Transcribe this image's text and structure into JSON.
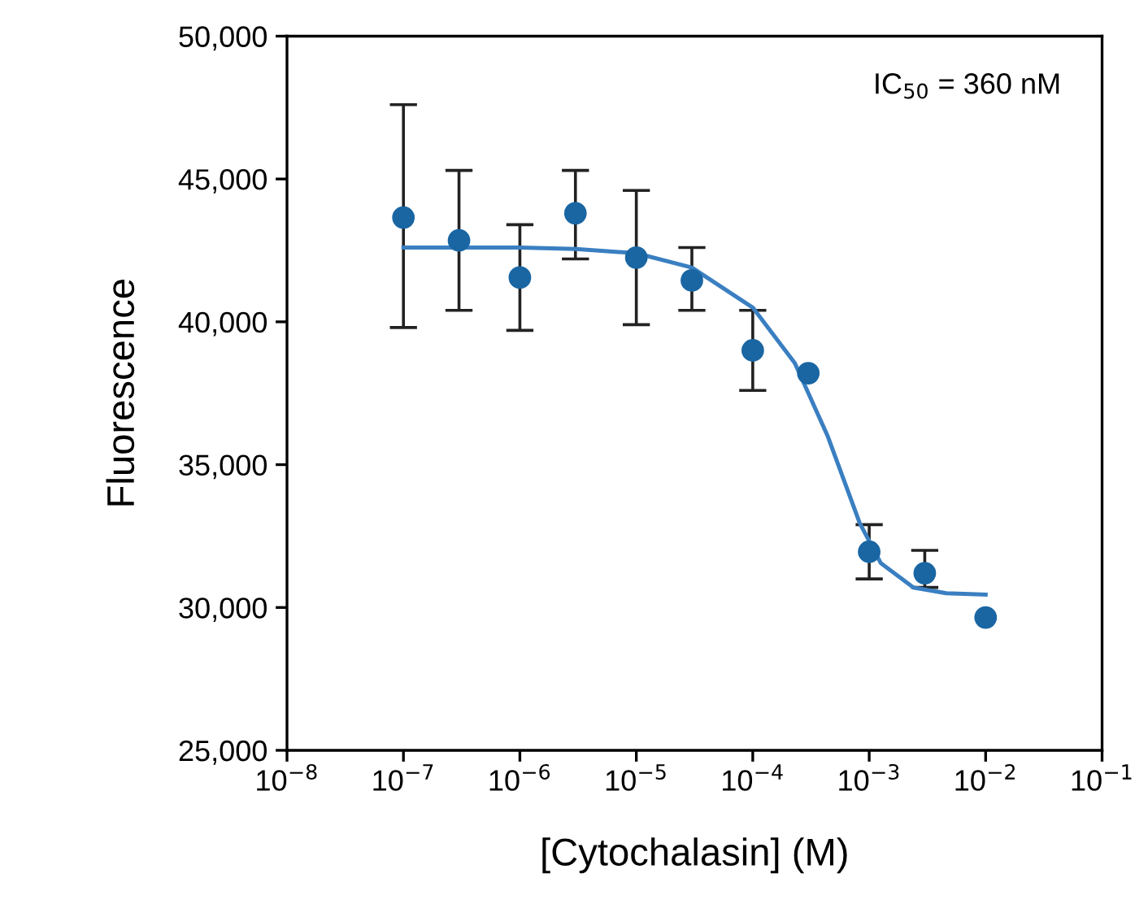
{
  "chart_data": {
    "type": "scatter",
    "xlabel": "[Cytochalasin] (M)",
    "ylabel": "Fluorescence",
    "annotations": [
      "IC$_{50}$ = 360 nM"
    ],
    "log": "x",
    "grid": false,
    "marker": "circle",
    "xlim": [
      1e-08,
      0.1
    ],
    "ylim": [
      25000,
      50000
    ],
    "xticks": [
      {
        "value": 1e-08,
        "label": "10$^{−8}$"
      },
      {
        "value": 1e-07,
        "label": "10$^{−7}$"
      },
      {
        "value": 1e-06,
        "label": "10$^{−6}$"
      },
      {
        "value": 1e-05,
        "label": "10$^{−5}$"
      },
      {
        "value": 0.0001,
        "label": "10$^{−4}$"
      },
      {
        "value": 0.001,
        "label": "10$^{−3}$"
      },
      {
        "value": 0.01,
        "label": "10$^{−2}$"
      },
      {
        "value": 0.1,
        "label": "10$^{−1}$"
      }
    ],
    "yticks": [
      {
        "value": 25000,
        "label": "25,000"
      },
      {
        "value": 30000,
        "label": "30,000"
      },
      {
        "value": 35000,
        "label": "35,000"
      },
      {
        "value": 40000,
        "label": "40,000"
      },
      {
        "value": 45000,
        "label": "45,000"
      },
      {
        "value": 50000,
        "label": "50,000"
      }
    ],
    "series": [
      {
        "type": "line",
        "color": "#3a7fc1",
        "line_style": "solid",
        "marker": "none",
        "x": [
          1e-07,
          1e-06,
          3e-06,
          1e-05,
          3e-05,
          0.0001,
          0.00023,
          0.00044,
          0.00083,
          0.00126,
          0.0024,
          0.0046,
          0.01
        ],
        "values": [
          42600,
          42600,
          42550,
          42400,
          41900,
          40500,
          38550,
          36000,
          32950,
          31550,
          30700,
          30500,
          30450
        ]
      },
      {
        "color": "#1a66a3",
        "x": [
          1e-07,
          3e-07,
          1e-06,
          3e-06,
          1e-05,
          3e-05,
          0.0001,
          0.0003,
          0.001,
          0.003,
          0.01
        ],
        "values": [
          43650,
          42850,
          41550,
          43800,
          42250,
          41450,
          39000,
          38200,
          31950,
          31200,
          29650
        ],
        "errors": [
          [
            39800,
            47600
          ],
          [
            40400,
            45300
          ],
          [
            39700,
            43400
          ],
          [
            42200,
            45300
          ],
          [
            39900,
            44600
          ],
          [
            40400,
            42600
          ],
          [
            37600,
            40400
          ],
          null,
          [
            31000,
            32900
          ],
          [
            30700,
            32000
          ],
          null
        ]
      }
    ]
  }
}
